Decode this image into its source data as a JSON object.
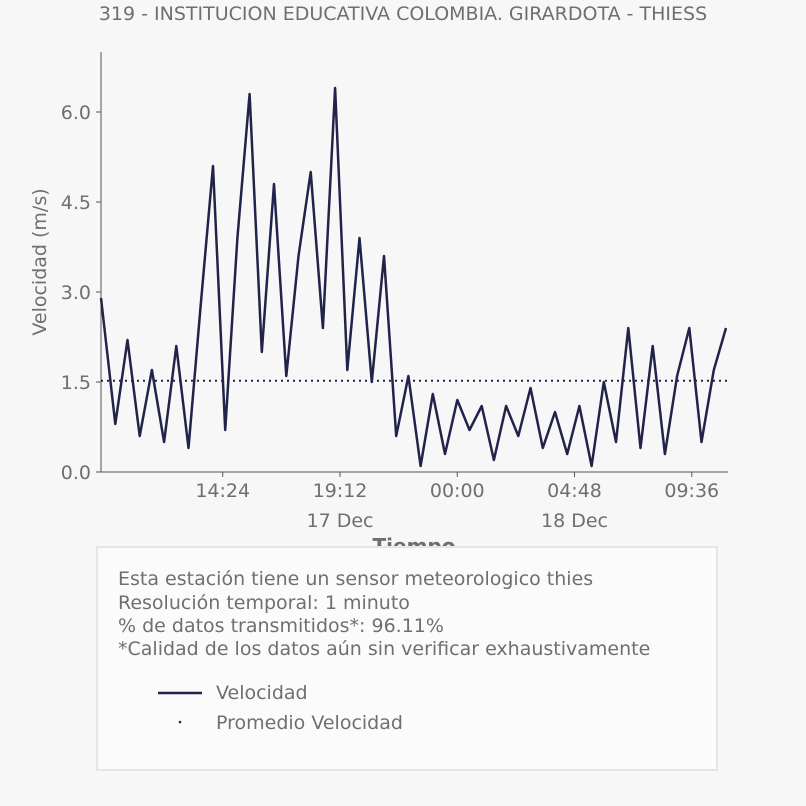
{
  "chart_data": {
    "type": "line",
    "title": "319 - INSTITUCION EDUCATIVA COLOMBIA. GIRARDOTA - THIESS",
    "xlabel": "Tiempo",
    "ylabel": "Velocidad (m/s)",
    "ylim": [
      0.0,
      7.0
    ],
    "yticks": [
      0.0,
      1.5,
      3.0,
      4.5,
      6.0
    ],
    "ytick_labels": [
      "0.0",
      "1.5",
      "3.0",
      "4.5",
      "6.0"
    ],
    "x_range": [
      "2018-12-17T09:25",
      "2018-12-18T11:05"
    ],
    "xticks": [
      {
        "time": "2018-12-17T14:24",
        "label": "14:24",
        "date_label": ""
      },
      {
        "time": "2018-12-17T19:12",
        "label": "19:12",
        "date_label": "17 Dec"
      },
      {
        "time": "2018-12-18T00:00",
        "label": "00:00",
        "date_label": ""
      },
      {
        "time": "2018-12-18T04:48",
        "label": "04:48",
        "date_label": "18 Dec"
      },
      {
        "time": "2018-12-18T09:36",
        "label": "09:36",
        "date_label": ""
      }
    ],
    "grid": false,
    "series": [
      {
        "name": "Velocidad",
        "color": "#22234a",
        "style": "solid",
        "x": [
          "2018-12-17T09:25",
          "2018-12-17T10:00",
          "2018-12-17T10:30",
          "2018-12-17T11:00",
          "2018-12-17T11:30",
          "2018-12-17T12:00",
          "2018-12-17T12:30",
          "2018-12-17T13:00",
          "2018-12-17T13:30",
          "2018-12-17T14:00",
          "2018-12-17T14:30",
          "2018-12-17T15:00",
          "2018-12-17T15:30",
          "2018-12-17T16:00",
          "2018-12-17T16:30",
          "2018-12-17T17:00",
          "2018-12-17T17:30",
          "2018-12-17T18:00",
          "2018-12-17T18:30",
          "2018-12-17T19:00",
          "2018-12-17T19:30",
          "2018-12-17T20:00",
          "2018-12-17T20:30",
          "2018-12-17T21:00",
          "2018-12-17T21:30",
          "2018-12-17T22:00",
          "2018-12-17T22:30",
          "2018-12-17T23:00",
          "2018-12-17T23:30",
          "2018-12-18T00:00",
          "2018-12-18T00:30",
          "2018-12-18T01:00",
          "2018-12-18T01:30",
          "2018-12-18T02:00",
          "2018-12-18T02:30",
          "2018-12-18T03:00",
          "2018-12-18T03:30",
          "2018-12-18T04:00",
          "2018-12-18T04:30",
          "2018-12-18T05:00",
          "2018-12-18T05:30",
          "2018-12-18T06:00",
          "2018-12-18T06:30",
          "2018-12-18T07:00",
          "2018-12-18T07:30",
          "2018-12-18T08:00",
          "2018-12-18T08:30",
          "2018-12-18T09:00",
          "2018-12-18T09:30",
          "2018-12-18T10:00",
          "2018-12-18T10:30",
          "2018-12-18T11:00"
        ],
        "y": [
          2.9,
          0.8,
          2.2,
          0.6,
          1.7,
          0.5,
          2.1,
          0.4,
          2.8,
          5.1,
          0.7,
          3.9,
          6.3,
          2.0,
          4.8,
          1.6,
          3.6,
          5.0,
          2.4,
          6.4,
          1.7,
          3.9,
          1.5,
          3.6,
          0.6,
          1.6,
          0.1,
          1.3,
          0.3,
          1.2,
          0.7,
          1.1,
          0.2,
          1.1,
          0.6,
          1.4,
          0.4,
          1.0,
          0.3,
          1.1,
          0.1,
          1.5,
          0.5,
          2.4,
          0.4,
          2.1,
          0.3,
          1.6,
          2.4,
          0.5,
          1.7,
          2.4
        ]
      },
      {
        "name": "Promedio Velocidad",
        "color": "#22234a",
        "style": "dotted",
        "constant_y": 1.52
      }
    ]
  },
  "info": {
    "line1": "Esta estación tiene un sensor meteorologico thies",
    "line2": "Resolución temporal: 1 minuto",
    "line3": "% de datos transmitidos*: 96.11%",
    "line4": "*Calidad de los datos aún sin verificar exhaustivamente"
  }
}
